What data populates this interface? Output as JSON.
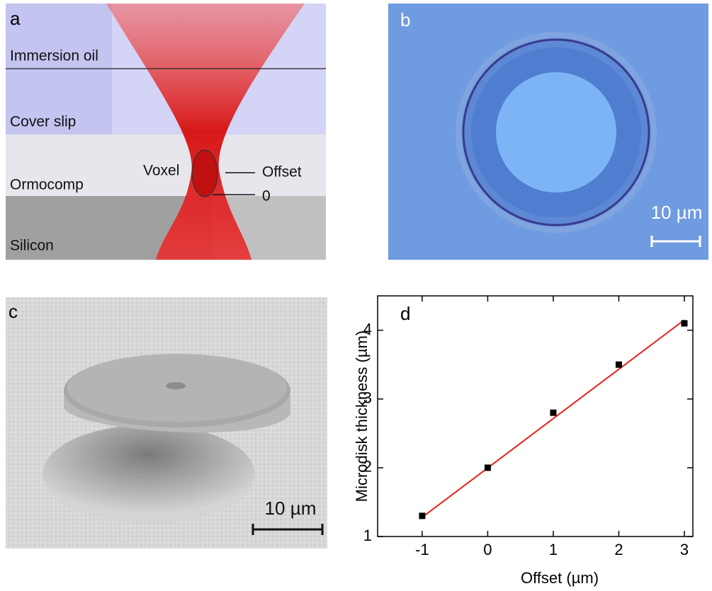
{
  "panels": {
    "a": {
      "label": "a",
      "layers": [
        "Immersion oil",
        "Cover slip",
        "Ormocomp",
        "Silicon"
      ],
      "voxel": "Voxel",
      "offset": "Offset",
      "zero": "0"
    },
    "b": {
      "label": "b",
      "scale_bar": "10 µm"
    },
    "c": {
      "label": "c",
      "scale_bar": "10 µm"
    },
    "d": {
      "label": "d"
    }
  },
  "chart_data": {
    "type": "scatter",
    "x": [
      -1,
      0,
      1,
      2,
      3
    ],
    "values": [
      1.3,
      2.0,
      2.8,
      3.5,
      4.1
    ],
    "color": "#000000",
    "fit": {
      "x": [
        -1,
        3
      ],
      "values": [
        1.28,
        4.15
      ],
      "color": "#e8201c"
    },
    "xlabel": "Offset (µm)",
    "ylabel": "Microdisk thickness (µm)",
    "xlim": [
      -1.68,
      3.13
    ],
    "ylim": [
      1,
      4.5
    ],
    "xticks": [
      -1,
      0,
      1,
      2,
      3
    ],
    "yticks": [
      1,
      2,
      3,
      4
    ]
  }
}
